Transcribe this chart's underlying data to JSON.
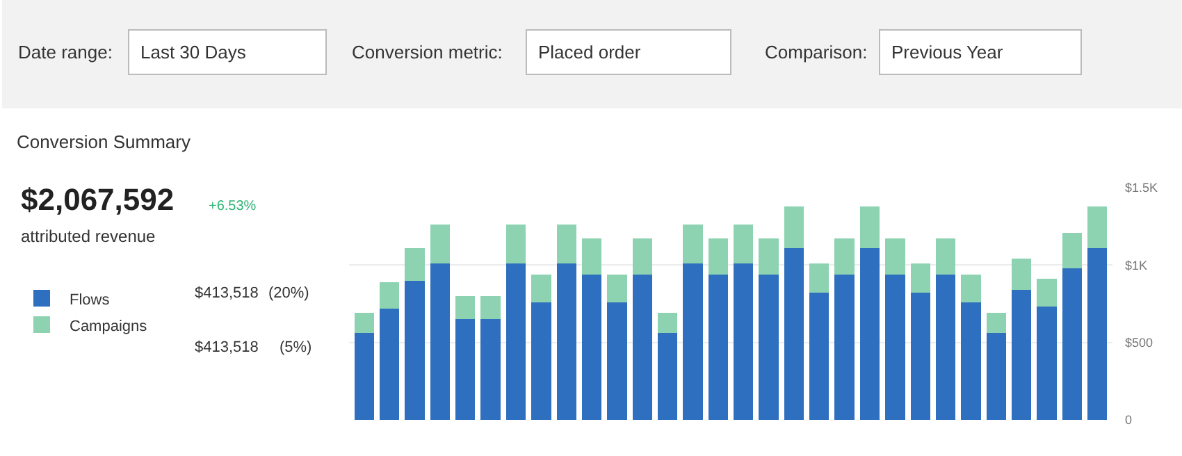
{
  "chart_data": {
    "type": "bar",
    "stacked": true,
    "title": "Conversion Summary",
    "categories": [
      null,
      null,
      null,
      null,
      null,
      null,
      null,
      null,
      null,
      null,
      null,
      null,
      null,
      null,
      null,
      null,
      null,
      null,
      null,
      null,
      null,
      null,
      null,
      null,
      null,
      null,
      null,
      null,
      null,
      null
    ],
    "series": [
      {
        "name": "Flows",
        "color": "#2f6fbf",
        "values": [
          560,
          720,
          900,
          1010,
          650,
          650,
          1010,
          760,
          1010,
          940,
          760,
          940,
          560,
          1010,
          940,
          1010,
          940,
          1110,
          820,
          940,
          1110,
          940,
          820,
          940,
          760,
          560,
          840,
          730,
          980,
          1110
        ]
      },
      {
        "name": "Campaigns",
        "color": "#8dd3b2",
        "values": [
          130,
          170,
          210,
          250,
          150,
          150,
          250,
          180,
          250,
          230,
          180,
          230,
          130,
          250,
          230,
          250,
          230,
          270,
          190,
          230,
          270,
          230,
          190,
          230,
          180,
          130,
          200,
          180,
          230,
          270
        ]
      }
    ],
    "ylim": [
      0,
      1500
    ],
    "yticks": [
      {
        "value": 0,
        "label": "0"
      },
      {
        "value": 500,
        "label": "$500"
      },
      {
        "value": 1000,
        "label": "$1K"
      },
      {
        "value": 1500,
        "label": "$1.5K"
      }
    ],
    "grid": "y",
    "legend": "left",
    "annotations": [
      "Date range:",
      "Last 30 Days",
      "Conversion metric:",
      "Placed order",
      "Comparison:",
      "Previous Year",
      "$2,067,592",
      "+6.53%",
      "attributed revenue",
      "$413,518",
      "(20%)",
      "$413,518",
      "(5%)"
    ]
  }
}
